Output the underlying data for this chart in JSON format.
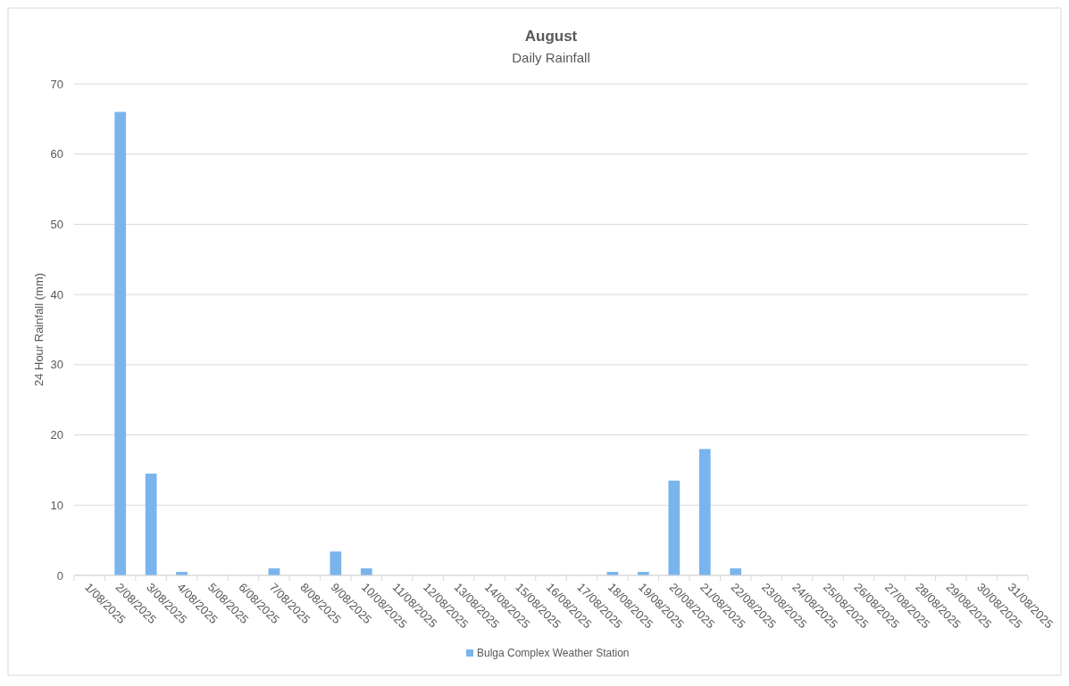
{
  "chart_data": {
    "type": "bar",
    "title": "August",
    "subtitle": "Daily Rainfall",
    "ylabel": "24 Hour Rainfall (mm)",
    "categories": [
      "1/08/2025",
      "2/08/2025",
      "3/08/2025",
      "4/08/2025",
      "5/08/2025",
      "6/08/2025",
      "7/08/2025",
      "8/08/2025",
      "9/08/2025",
      "10/08/2025",
      "11/08/2025",
      "12/08/2025",
      "13/08/2025",
      "14/08/2025",
      "15/08/2025",
      "16/08/2025",
      "17/08/2025",
      "18/08/2025",
      "19/08/2025",
      "20/08/2025",
      "21/08/2025",
      "22/08/2025",
      "23/08/2025",
      "24/08/2025",
      "25/08/2025",
      "26/08/2025",
      "27/08/2025",
      "28/08/2025",
      "29/08/2025",
      "30/08/2025",
      "31/08/2025"
    ],
    "series": [
      {
        "name": "Bulga Complex Weather Station",
        "color": "#7ab4ec",
        "values": [
          0,
          66,
          14.5,
          0.5,
          0,
          0,
          1,
          0,
          3.4,
          1,
          0,
          0,
          0,
          0,
          0,
          0,
          0,
          0.5,
          0.5,
          13.5,
          18,
          1,
          0,
          0,
          0,
          0,
          0,
          0,
          0,
          0,
          0
        ]
      }
    ],
    "ylim": [
      0,
      70
    ],
    "yticks": [
      0,
      10,
      20,
      30,
      40,
      50,
      60,
      70
    ],
    "grid": "y",
    "legend": "bottom"
  }
}
